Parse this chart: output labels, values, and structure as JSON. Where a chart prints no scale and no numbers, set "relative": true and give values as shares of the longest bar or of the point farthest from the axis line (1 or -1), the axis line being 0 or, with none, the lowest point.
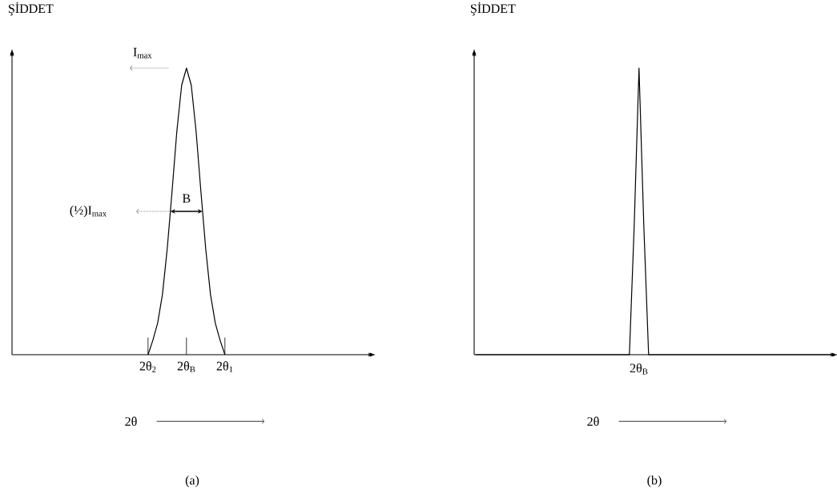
{
  "chart_data": [
    {
      "type": "line",
      "relative": true,
      "ylabel": "ŞİDDET",
      "xlabel": "2θ",
      "title": "(a)",
      "categories": [
        null,
        null,
        null,
        null,
        null,
        null,
        null,
        null,
        null,
        null,
        null,
        null,
        null,
        null,
        null,
        null,
        null,
        null,
        null,
        null,
        null,
        null,
        null,
        null,
        null,
        null,
        null,
        null,
        "2θ$_{2}$",
        null,
        null,
        null,
        null,
        null,
        null,
        null,
        "2θ$_{B}$",
        null,
        null,
        null,
        null,
        null,
        null,
        null,
        "2θ$_{1}$",
        null,
        null,
        null,
        null,
        null,
        null,
        null,
        null,
        null,
        null,
        null,
        null,
        null,
        null,
        null,
        null,
        null,
        null,
        null,
        null,
        null,
        null,
        null,
        null,
        null,
        null,
        null,
        null,
        null,
        null
      ],
      "series": [
        {
          "color": "#000000",
          "values": [
            null,
            null,
            null,
            null,
            null,
            null,
            null,
            null,
            null,
            null,
            null,
            null,
            null,
            null,
            null,
            null,
            null,
            null,
            null,
            null,
            null,
            null,
            null,
            null,
            null,
            null,
            null,
            null,
            0,
            0.05,
            0.11,
            0.21,
            0.37,
            0.57,
            0.78,
            0.94,
            1,
            0.94,
            0.78,
            0.57,
            0.37,
            0.21,
            0.11,
            0.05,
            0,
            null,
            null,
            null,
            null,
            null,
            null,
            null,
            null,
            null,
            null,
            null,
            null,
            null,
            null,
            null,
            null,
            null,
            null,
            null,
            null,
            null,
            null,
            null,
            null,
            null,
            null,
            null,
            null,
            null,
            null
          ]
        }
      ],
      "annotations": [
        "I$_{max}$",
        "(½)I$_{max}$",
        "B"
      ]
    },
    {
      "type": "line",
      "relative": true,
      "ylabel": "ŞİDDET",
      "xlabel": "2θ",
      "title": "(b)",
      "categories": [
        null,
        null,
        null,
        null,
        null,
        null,
        null,
        null,
        null,
        null,
        null,
        null,
        null,
        null,
        null,
        null,
        null,
        null,
        null,
        null,
        null,
        null,
        null,
        null,
        null,
        null,
        null,
        null,
        null,
        null,
        null,
        null,
        null,
        null,
        null,
        null,
        null,
        null,
        null,
        null,
        null,
        null,
        null,
        null,
        null,
        null,
        null,
        null,
        null,
        null,
        null,
        null,
        null,
        null,
        null,
        null,
        null,
        null,
        null,
        null,
        null,
        null,
        null,
        null,
        null,
        null,
        null,
        null,
        null,
        null,
        null,
        null,
        null,
        null,
        null
      ],
      "series": [
        {
          "color": "#000000",
          "values": [
            0,
            0,
            0,
            0,
            0,
            0,
            0,
            0,
            0,
            0,
            0,
            0,
            0,
            0,
            0,
            0,
            0,
            0,
            0,
            0,
            0,
            0,
            0,
            0,
            0,
            0,
            0,
            0,
            0,
            0,
            0,
            0,
            0,
            0.45,
            1,
            0.45,
            0,
            0,
            0,
            0,
            0,
            0,
            0,
            0,
            0,
            0,
            0,
            0,
            0,
            0,
            0,
            0,
            0,
            0,
            0,
            0,
            0,
            0,
            0,
            0,
            0,
            0,
            0,
            0,
            0,
            0,
            0,
            0,
            0,
            0,
            0,
            0,
            0,
            0,
            0
          ]
        }
      ],
      "annotations": [
        "2θ$_{B}$"
      ]
    }
  ]
}
